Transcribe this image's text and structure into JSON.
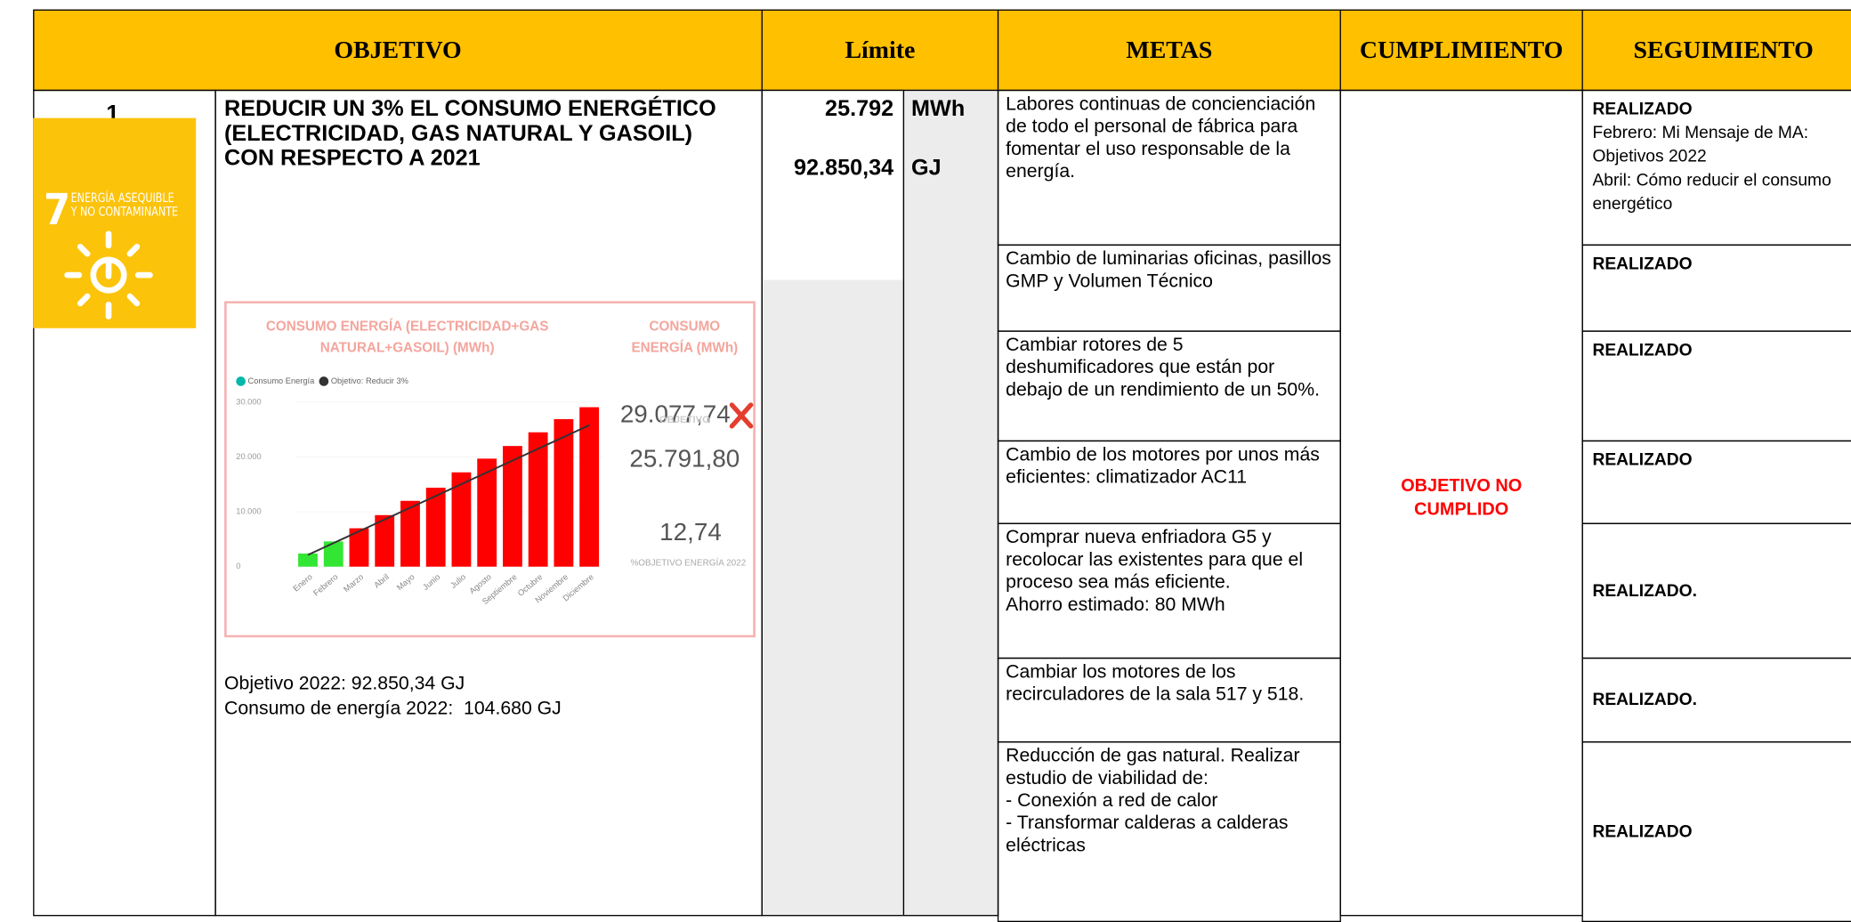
{
  "header": {
    "objetivo": "OBJETIVO",
    "limite": "Límite",
    "metas": "METAS",
    "cumplimiento": "CUMPLIMIENTO",
    "seguimiento": "SEGUIMIENTO"
  },
  "objective": {
    "number": "1",
    "sdg_icon": {
      "number": "7",
      "label": "ENERGÍA ASEQUIBLE\nY NO CONTAMINANTE"
    },
    "title": "REDUCIR UN 3% EL CONSUMO ENERGÉTICO (ELECTRICIDAD, GAS NATURAL Y GASOIL) CON RESPECTO A 2021",
    "notes": [
      "Objetivo 2022: 92.850,34 GJ",
      "Consumo de energía 2022:  104.680 GJ"
    ]
  },
  "limits": [
    {
      "value": "25.792",
      "unit": "MWh"
    },
    {
      "value": "92.850,34",
      "unit": "GJ"
    }
  ],
  "metas": [
    {
      "text": "Labores continuas de concienciación de todo el personal de fábrica para fomentar el uso responsable de la energía.",
      "status": "REALIZADO",
      "detail": "Febrero: Mi Mensaje de MA: Objetivos 2022\nAbril: Cómo reducir el consumo energético"
    },
    {
      "text": "Cambio de luminarias oficinas, pasillos GMP y Volumen Técnico",
      "status": "REALIZADO"
    },
    {
      "text": "Cambiar rotores de 5 deshumificadores que están por debajo de un rendimiento de un 50%.",
      "status": "REALIZADO"
    },
    {
      "text": "Cambio de los motores por unos más eficientes: climatizador AC11",
      "status": "REALIZADO"
    },
    {
      "text": "Comprar nueva enfriadora G5 y recolocar las existentes para que el proceso sea más eficiente.\nAhorro estimado: 80 MWh",
      "status": "REALIZADO."
    },
    {
      "text": "Cambiar los motores de los recirculadores de la sala 517 y 518.",
      "status": "REALIZADO."
    },
    {
      "text": "Reducción de gas natural. Realizar estudio de viabilidad de:\n- Conexión a red de calor\n- Transformar calderas a calderas eléctricas",
      "status": "REALIZADO"
    }
  ],
  "cumplimiento": "OBJETIVO NO CUMPLIDO",
  "chart_data": {
    "type": "bar",
    "title": "CONSUMO ENERGÍA (ELECTRICIDAD+GAS\nNATURAL+GASOIL) (MWh)",
    "categories": [
      "Enero",
      "Febrero",
      "Marzo",
      "Abril",
      "Mayo",
      "Junio",
      "Julio",
      "Agosto",
      "Septiembre",
      "Octubre",
      "Noviembre",
      "Diciembre"
    ],
    "series": [
      {
        "name": "Consumo Energía",
        "color": "#01b8aa",
        "values": [
          2400,
          4600,
          7000,
          9400,
          12000,
          14400,
          17200,
          19700,
          22000,
          24500,
          26900,
          29077.74
        ]
      },
      {
        "name": "Objetivo: Reducir 3%",
        "color": "#333333",
        "values": [
          2149.3,
          4298.6,
          6447.9,
          8597.2,
          10746.6,
          12895.9,
          15045.2,
          17194.5,
          19343.8,
          21493.2,
          23642.5,
          25791.8
        ]
      }
    ],
    "bar_colors": [
      "#33e633",
      "#33e633",
      "#ff0000",
      "#ff0000",
      "#ff0000",
      "#ff0000",
      "#ff0000",
      "#ff0000",
      "#ff0000",
      "#ff0000",
      "#ff0000",
      "#ff0000"
    ],
    "ylim": [
      0,
      31000
    ],
    "yticks": [
      0,
      {
        "value": 10000,
        "label": "10.000"
      },
      {
        "value": 20000,
        "label": "20.000"
      },
      {
        "value": 30000,
        "label": "30.000"
      }
    ],
    "kpis": [
      {
        "title": "CONSUMO\nENERGÍA (MWh)",
        "value": "29.077,74"
      },
      {
        "title": "OBJETIVO",
        "value": "25.791,80"
      },
      {
        "value": "12,74",
        "title": "%OBJETIVO ENERGÍA 2022"
      }
    ]
  }
}
